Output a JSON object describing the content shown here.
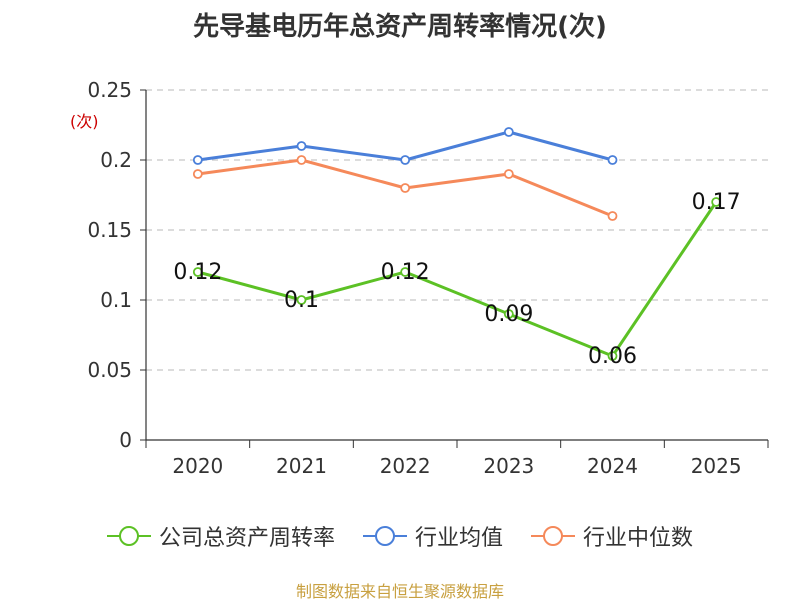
{
  "title": "先导基电历年总资产周转率情况(次)",
  "source": "制图数据来自恒生聚源数据库",
  "chart_data": {
    "type": "line",
    "ylabel": "(次)",
    "ylim": [
      0,
      0.25
    ],
    "yticks": [
      "0",
      "0.05",
      "0.1",
      "0.15",
      "0.2",
      "0.25"
    ],
    "ytick_values": [
      0,
      0.05,
      0.1,
      0.15,
      0.2,
      0.25
    ],
    "categories": [
      "2020",
      "2021",
      "2022",
      "2023",
      "2024",
      "2025"
    ],
    "grid": true,
    "legend_position": "bottom",
    "series": [
      {
        "name": "公司总资产周转率",
        "color": "#5cc125",
        "values": [
          0.12,
          0.1,
          0.12,
          0.09,
          0.06,
          0.17
        ],
        "labels": [
          "0.12",
          "0.1",
          "0.12",
          "0.09",
          "0.06",
          "0.17"
        ]
      },
      {
        "name": "行业均值",
        "color": "#4a7fd9",
        "values": [
          0.2,
          0.21,
          0.2,
          0.22,
          0.2,
          null
        ]
      },
      {
        "name": "行业中位数",
        "color": "#f5895a",
        "values": [
          0.19,
          0.2,
          0.18,
          0.19,
          0.16,
          null
        ]
      }
    ]
  }
}
